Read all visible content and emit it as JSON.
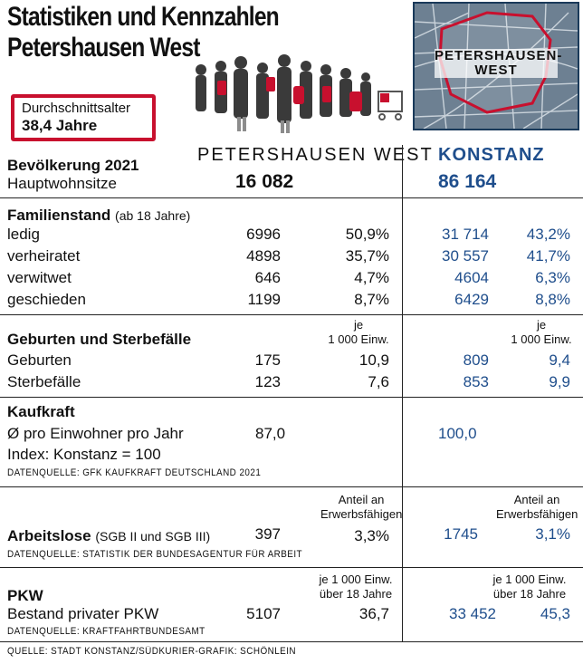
{
  "title": {
    "line1": "Statistiken und Kennzahlen",
    "line2": "Petershausen West"
  },
  "badge": {
    "line1": "Durchschnittsalter",
    "line2": "38,4 Jahre"
  },
  "map": {
    "label_line1": "PETERSHAUSEN-",
    "label_line2": "WEST"
  },
  "columns": {
    "district": "PETERSHAUSEN WEST",
    "city": "KONSTANZ"
  },
  "population": {
    "heading": "Bevölkerung 2021",
    "sub": "Hauptwohnsitze",
    "district": "16 082",
    "city": "86 164"
  },
  "family": {
    "heading": "Familienstand",
    "qualifier": "(ab 18 Jahre)",
    "rows": [
      {
        "label": "ledig",
        "d_abs": "6996",
        "d_pct": "50,9%",
        "c_abs": "31 714",
        "c_pct": "43,2%"
      },
      {
        "label": "verheiratet",
        "d_abs": "4898",
        "d_pct": "35,7%",
        "c_abs": "30 557",
        "c_pct": "41,7%"
      },
      {
        "label": "verwitwet",
        "d_abs": "646",
        "d_pct": "4,7%",
        "c_abs": "4604",
        "c_pct": "6,3%"
      },
      {
        "label": "geschieden",
        "d_abs": "1199",
        "d_pct": "8,7%",
        "c_abs": "6429",
        "c_pct": "8,8%"
      }
    ]
  },
  "births": {
    "heading": "Geburten und Sterbefälle",
    "note_l1": "je",
    "note_l2": "1 000 Einw.",
    "rows": [
      {
        "label": "Geburten",
        "d_abs": "175",
        "d_rate": "10,9",
        "c_abs": "809",
        "c_rate": "9,4"
      },
      {
        "label": "Sterbefälle",
        "d_abs": "123",
        "d_rate": "7,6",
        "c_abs": "853",
        "c_rate": "9,9"
      }
    ]
  },
  "power": {
    "heading": "Kaufkraft",
    "row": "Ø pro Einwohner pro Jahr",
    "d_val": "87,0",
    "c_val": "100,0",
    "index": "Index: Konstanz = 100",
    "source": "DATENQUELLE: GFK KAUFKRAFT DEUTSCHLAND 2021"
  },
  "jobless": {
    "heading": "Arbeitslose",
    "qualifier": "(SGB II und SGB III)",
    "note_l1": "Anteil an",
    "note_l2": "Erwerbsfähigen",
    "d_abs": "397",
    "d_pct": "3,3%",
    "c_abs": "1745",
    "c_pct": "3,1%",
    "source": "DATENQUELLE: STATISTIK DER BUNDESAGENTUR FÜR ARBEIT"
  },
  "cars": {
    "heading": "PKW",
    "row": "Bestand privater PKW",
    "note_l1": "je 1 000 Einw.",
    "note_l2": "über 18 Jahre",
    "d_abs": "5107",
    "d_rate": "36,7",
    "c_abs": "33 452",
    "c_rate": "45,3",
    "source": "DATENQUELLE: KRAFTFAHRTBUNDESAMT"
  },
  "footer": "QUELLE: STADT KONSTANZ/SÜDKURIER-GRAFIK: SCHÖNLEIN",
  "colors": {
    "accent_red": "#c8102e",
    "city_blue": "#1f4e8c"
  }
}
